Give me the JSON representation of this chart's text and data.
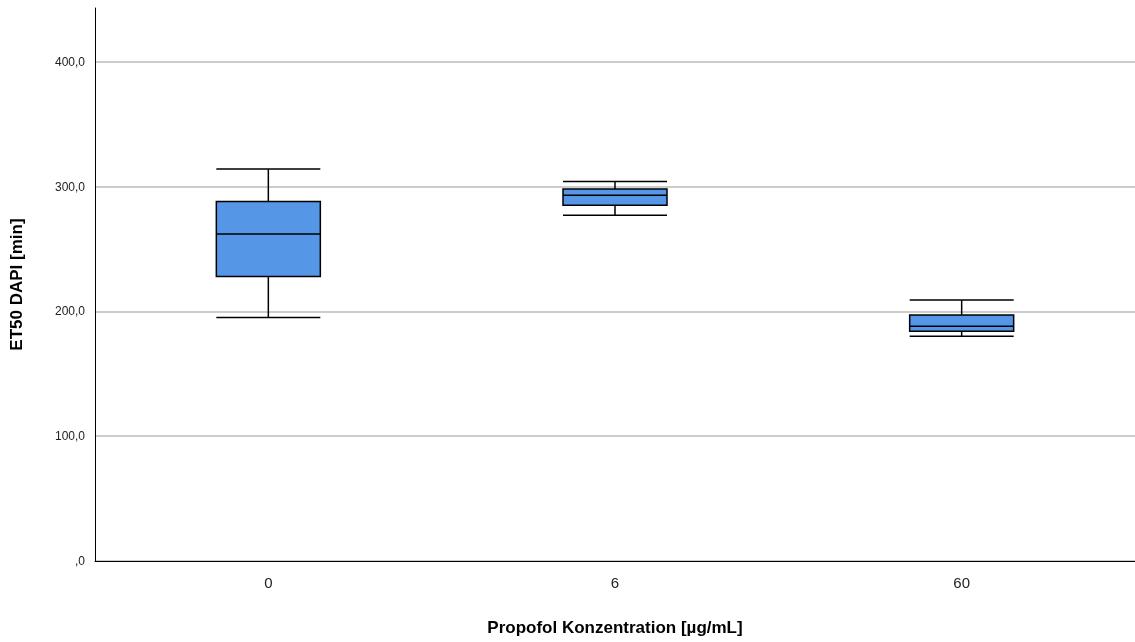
{
  "chart_data": {
    "type": "box",
    "xlabel": "Propofol Konzentration [µg/mL]",
    "ylabel": "ET50 DAPI [min]",
    "categories": [
      "0",
      "6",
      "60"
    ],
    "boxes": [
      {
        "low": 195,
        "q1": 228,
        "median": 262,
        "q3": 288,
        "high": 314
      },
      {
        "low": 277,
        "q1": 285,
        "median": 293,
        "q3": 298,
        "high": 304
      },
      {
        "low": 180,
        "q1": 184,
        "median": 188,
        "q3": 197,
        "high": 209
      }
    ],
    "color": "#5596e6",
    "ylim": [
      0,
      443
    ],
    "yticks": [
      {
        "value": 0,
        "label": ",0"
      },
      {
        "value": 100,
        "label": "100,0"
      },
      {
        "value": 200,
        "label": "200,0"
      },
      {
        "value": 300,
        "label": "300,0"
      },
      {
        "value": 400,
        "label": "400,0"
      }
    ],
    "grid": "y"
  }
}
